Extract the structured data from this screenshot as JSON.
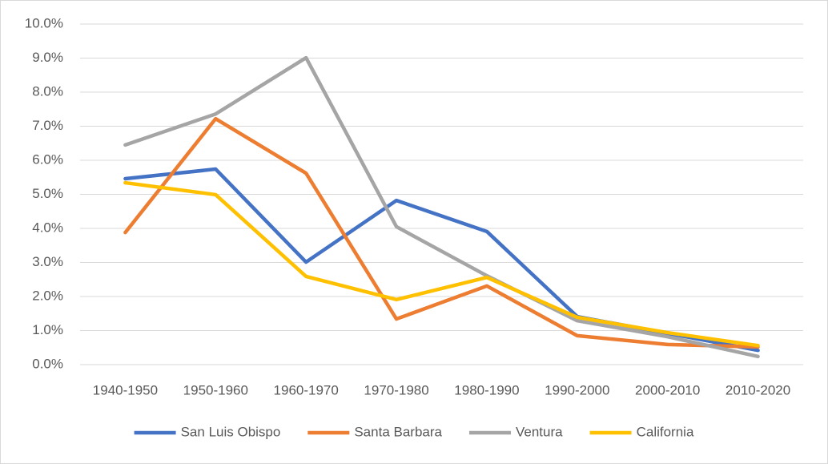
{
  "chart_data": {
    "type": "line",
    "categories": [
      "1940-1950",
      "1950-1960",
      "1960-1970",
      "1970-1980",
      "1980-1990",
      "1990-2000",
      "2000-2010",
      "2010-2020"
    ],
    "series": [
      {
        "name": "San Luis Obispo",
        "color": "#4472c4",
        "values": [
          5.46,
          5.74,
          3.01,
          4.82,
          3.91,
          1.41,
          0.92,
          0.42
        ]
      },
      {
        "name": "Santa Barbara",
        "color": "#ed7d31",
        "values": [
          3.88,
          7.22,
          5.62,
          1.34,
          2.31,
          0.85,
          0.59,
          0.52
        ]
      },
      {
        "name": "Ventura",
        "color": "#a5a5a5",
        "values": [
          6.45,
          7.36,
          9.01,
          4.05,
          2.61,
          1.29,
          0.82,
          0.24
        ]
      },
      {
        "name": "California",
        "color": "#ffc000",
        "values": [
          5.34,
          4.99,
          2.59,
          1.91,
          2.56,
          1.39,
          0.94,
          0.56
        ]
      }
    ],
    "ylim": [
      0,
      10
    ],
    "yticks": [
      {
        "value": 0,
        "label": "0.0%"
      },
      {
        "value": 1,
        "label": "1.0%"
      },
      {
        "value": 2,
        "label": "2.0%"
      },
      {
        "value": 3,
        "label": "3.0%"
      },
      {
        "value": 4,
        "label": "4.0%"
      },
      {
        "value": 5,
        "label": "5.0%"
      },
      {
        "value": 6,
        "label": "6.0%"
      },
      {
        "value": 7,
        "label": "7.0%"
      },
      {
        "value": 8,
        "label": "8.0%"
      },
      {
        "value": 9,
        "label": "9.0%"
      },
      {
        "value": 10,
        "label": "10.0%"
      }
    ],
    "grid": true,
    "legend": "bottom"
  }
}
